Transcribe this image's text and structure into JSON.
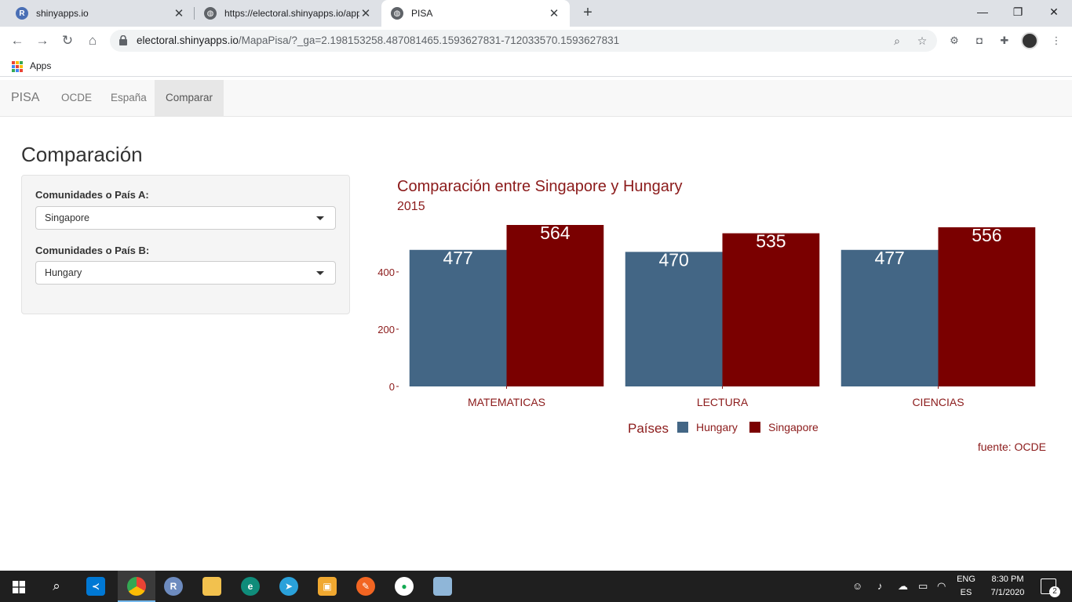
{
  "browser": {
    "tabs": [
      {
        "title": "shinyapps.io",
        "icon": "r-logo-icon",
        "active": false
      },
      {
        "title": "https://electoral.shinyapps.io/app",
        "icon": "globe-icon",
        "active": false
      },
      {
        "title": "PISA",
        "icon": "globe-icon",
        "active": true
      }
    ],
    "url_host": "electoral.shinyapps.io",
    "url_path": "/MapaPisa/?_ga=2.198153258.487081465.1593627831-712033570.1593627831",
    "bookmarks_label": "Apps"
  },
  "app": {
    "brand": "PISA",
    "nav": [
      {
        "label": "OCDE",
        "active": false
      },
      {
        "label": "España",
        "active": false
      },
      {
        "label": "Comparar",
        "active": true
      }
    ],
    "page_title": "Comparación",
    "controls": {
      "a_label": "Comunidades o País A:",
      "a_value": "Singapore",
      "b_label": "Comunidades o País B:",
      "b_value": "Hungary"
    }
  },
  "chart_data": {
    "type": "bar",
    "title": "Comparación entre Singapore y Hungary",
    "subtitle": "2015",
    "caption": "fuente: OCDE",
    "categories": [
      "MATEMATICAS",
      "LECTURA",
      "CIENCIAS"
    ],
    "series": [
      {
        "name": "Hungary",
        "values": [
          477,
          470,
          477
        ],
        "color": "#436685"
      },
      {
        "name": "Singapore",
        "values": [
          564,
          535,
          556
        ],
        "color": "#7a0000"
      }
    ],
    "y_ticks": [
      0,
      200,
      400
    ],
    "ylim": [
      0,
      564
    ],
    "legend_title": "Países",
    "legend_position": "bottom",
    "grid": false,
    "text_color": "#8b1a1a"
  },
  "taskbar": {
    "lang": "ENG",
    "layout": "ES",
    "time": "8:30 PM",
    "date": "7/1/2020",
    "notifications": "2"
  }
}
